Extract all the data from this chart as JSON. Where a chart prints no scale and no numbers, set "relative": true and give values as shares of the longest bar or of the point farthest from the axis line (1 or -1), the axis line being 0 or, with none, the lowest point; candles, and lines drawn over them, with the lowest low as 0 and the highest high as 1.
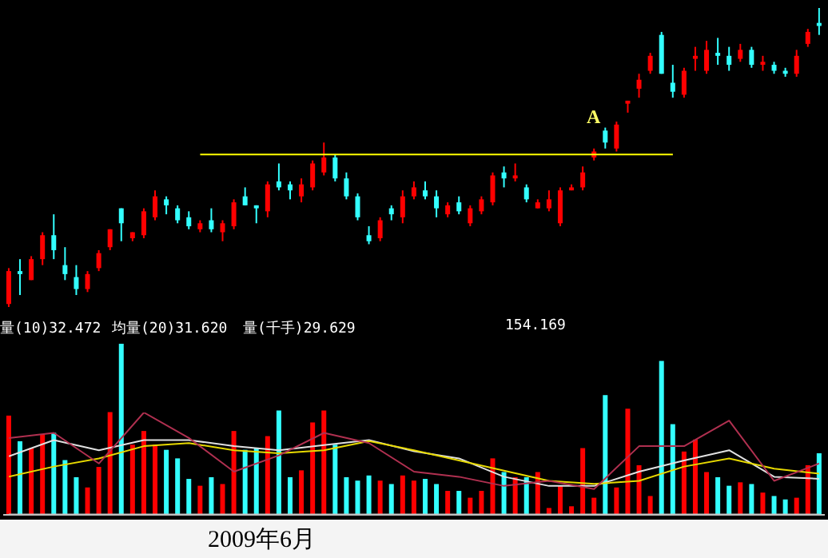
{
  "chart_data": [
    {
      "type": "candlestick",
      "relative": true,
      "legend": false,
      "annotations": [
        "A"
      ],
      "categories": [
        null,
        null,
        null,
        null,
        null,
        null,
        null,
        null,
        null,
        null,
        null,
        null,
        null,
        null,
        null,
        null,
        null,
        null,
        null,
        null,
        null,
        null,
        null,
        null,
        null,
        null,
        null,
        null,
        null,
        null,
        null,
        null,
        null,
        null,
        null,
        null,
        null,
        null,
        null,
        null,
        null,
        null,
        null,
        null,
        null,
        null,
        null,
        null,
        null,
        null,
        null,
        null,
        null,
        null,
        null,
        null,
        null,
        null,
        null,
        null,
        null,
        null,
        null,
        null,
        null,
        null,
        null,
        null,
        null,
        null,
        null,
        null,
        null
      ],
      "series": [
        {
          "ohlc": [
            [
              0.01,
              0.13,
              0,
              0.12
            ],
            [
              0.12,
              0.16,
              0.04,
              0.11
            ],
            [
              0.09,
              0.17,
              0.09,
              0.16
            ],
            [
              0.16,
              0.25,
              0.14,
              0.24
            ],
            [
              0.24,
              0.31,
              0.16,
              0.19
            ],
            [
              0.14,
              0.2,
              0.09,
              0.11
            ],
            [
              0.1,
              0.14,
              0.04,
              0.06
            ],
            [
              0.06,
              0.12,
              0.05,
              0.11
            ],
            [
              0.13,
              0.19,
              0.12,
              0.18
            ],
            [
              0.2,
              0.26,
              0.19,
              0.26
            ],
            [
              0.33,
              0.33,
              0.22,
              0.28
            ],
            [
              0.23,
              0.25,
              0.22,
              0.25
            ],
            [
              0.24,
              0.33,
              0.23,
              0.32
            ],
            [
              0.3,
              0.39,
              0.29,
              0.37
            ],
            [
              0.36,
              0.37,
              0.31,
              0.34
            ],
            [
              0.33,
              0.34,
              0.28,
              0.29
            ],
            [
              0.3,
              0.32,
              0.26,
              0.27
            ],
            [
              0.26,
              0.29,
              0.25,
              0.28
            ],
            [
              0.29,
              0.33,
              0.25,
              0.26
            ],
            [
              0.25,
              0.29,
              0.22,
              0.28
            ],
            [
              0.27,
              0.36,
              0.26,
              0.35
            ],
            [
              0.37,
              0.4,
              0.34,
              0.34
            ],
            [
              0.34,
              0.34,
              0.28,
              0.33
            ],
            [
              0.32,
              0.42,
              0.3,
              0.41
            ],
            [
              0.42,
              0.48,
              0.39,
              0.4
            ],
            [
              0.41,
              0.42,
              0.36,
              0.39
            ],
            [
              0.37,
              0.43,
              0.35,
              0.41
            ],
            [
              0.4,
              0.49,
              0.39,
              0.48
            ],
            [
              0.45,
              0.55,
              0.44,
              0.5
            ],
            [
              0.5,
              0.51,
              0.42,
              0.43
            ],
            [
              0.43,
              0.45,
              0.36,
              0.37
            ],
            [
              0.37,
              0.38,
              0.29,
              0.3
            ],
            [
              0.24,
              0.27,
              0.21,
              0.22
            ],
            [
              0.23,
              0.3,
              0.22,
              0.29
            ],
            [
              0.33,
              0.34,
              0.29,
              0.31
            ],
            [
              0.3,
              0.39,
              0.28,
              0.37
            ],
            [
              0.37,
              0.42,
              0.36,
              0.4
            ],
            [
              0.39,
              0.42,
              0.36,
              0.37
            ],
            [
              0.37,
              0.39,
              0.3,
              0.33
            ],
            [
              0.31,
              0.35,
              0.3,
              0.34
            ],
            [
              0.35,
              0.37,
              0.31,
              0.32
            ],
            [
              0.28,
              0.34,
              0.27,
              0.33
            ],
            [
              0.32,
              0.37,
              0.31,
              0.36
            ],
            [
              0.35,
              0.45,
              0.34,
              0.44
            ],
            [
              0.45,
              0.47,
              0.4,
              0.43
            ],
            [
              0.43,
              0.48,
              0.42,
              0.44
            ],
            [
              0.4,
              0.41,
              0.35,
              0.36
            ],
            [
              0.33,
              0.36,
              0.33,
              0.35
            ],
            [
              0.33,
              0.39,
              0.32,
              0.36
            ],
            [
              0.28,
              0.4,
              0.27,
              0.39
            ],
            [
              0.39,
              0.41,
              0.39,
              0.4
            ],
            [
              0.4,
              0.47,
              0.39,
              0.45
            ],
            [
              0.5,
              0.53,
              0.49,
              0.52
            ],
            [
              0.59,
              0.6,
              0.53,
              0.55
            ],
            [
              0.53,
              0.62,
              0.52,
              0.61
            ],
            [
              0.68,
              0.69,
              0.65,
              0.69
            ],
            [
              0.73,
              0.78,
              0.7,
              0.76
            ],
            [
              0.79,
              0.85,
              0.78,
              0.84
            ],
            [
              0.91,
              0.92,
              0.78,
              0.78
            ],
            [
              0.75,
              0.81,
              0.7,
              0.72
            ],
            [
              0.71,
              0.8,
              0.7,
              0.79
            ],
            [
              0.83,
              0.87,
              0.79,
              0.84
            ],
            [
              0.79,
              0.89,
              0.78,
              0.86
            ],
            [
              0.85,
              0.9,
              0.81,
              0.84
            ],
            [
              0.84,
              0.87,
              0.79,
              0.81
            ],
            [
              0.83,
              0.88,
              0.82,
              0.86
            ],
            [
              0.86,
              0.87,
              0.8,
              0.81
            ],
            [
              0.81,
              0.84,
              0.79,
              0.82
            ],
            [
              0.81,
              0.82,
              0.78,
              0.79
            ],
            [
              0.79,
              0.8,
              0.77,
              0.78
            ],
            [
              0.78,
              0.86,
              0.77,
              0.84
            ],
            [
              0.88,
              0.93,
              0.87,
              0.92
            ],
            [
              0.95,
              1,
              0.91,
              0.94
            ]
          ],
          "colors": [
            "#ff0000",
            "#33ffff",
            "#ff0000",
            "#ff0000",
            "#33ffff",
            "#33ffff",
            "#33ffff",
            "#ff0000",
            "#ff0000",
            "#ff0000",
            "#33ffff",
            "#ff0000",
            "#ff0000",
            "#ff0000",
            "#33ffff",
            "#33ffff",
            "#33ffff",
            "#ff0000",
            "#33ffff",
            "#ff0000",
            "#ff0000",
            "#33ffff",
            "#33ffff",
            "#ff0000",
            "#33ffff",
            "#33ffff",
            "#ff0000",
            "#ff0000",
            "#ff0000",
            "#33ffff",
            "#33ffff",
            "#33ffff",
            "#33ffff",
            "#ff0000",
            "#33ffff",
            "#ff0000",
            "#ff0000",
            "#33ffff",
            "#33ffff",
            "#ff0000",
            "#33ffff",
            "#ff0000",
            "#ff0000",
            "#ff0000",
            "#33ffff",
            "#ff0000",
            "#33ffff",
            "#ff0000",
            "#ff0000",
            "#ff0000",
            "#ff0000",
            "#ff0000",
            "#ff0000",
            "#33ffff",
            "#ff0000",
            "#ff0000",
            "#ff0000",
            "#ff0000",
            "#33ffff",
            "#33ffff",
            "#ff0000",
            "#ff0000",
            "#ff0000",
            "#33ffff",
            "#33ffff",
            "#ff0000",
            "#33ffff",
            "#ff0000",
            "#33ffff",
            "#33ffff",
            "#ff0000",
            "#ff0000",
            "#33ffff"
          ]
        },
        {
          "type": "line",
          "color": "#ffff00",
          "values": [
            null,
            null,
            null,
            null,
            null,
            null,
            null,
            null,
            null,
            null,
            null,
            null,
            null,
            null,
            null,
            null,
            null,
            0.51,
            0.51,
            0.51,
            0.51,
            0.51,
            0.51,
            0.51,
            0.51,
            0.51,
            0.51,
            0.51,
            0.51,
            0.51,
            0.51,
            0.51,
            0.51,
            0.51,
            0.51,
            0.51,
            0.51,
            0.51,
            0.51,
            0.51,
            0.51,
            0.51,
            0.51,
            0.51,
            0.51,
            0.51,
            0.51,
            0.51,
            0.51,
            0.51,
            0.51,
            0.51,
            0.51,
            0.51,
            0.51,
            0.51,
            0.51,
            0.51,
            0.51,
            0.51,
            null,
            null,
            null,
            null,
            null,
            null,
            null,
            null,
            null,
            null,
            null,
            null,
            null
          ]
        }
      ]
    },
    {
      "type": "bar",
      "relative": true,
      "legend": false,
      "xlabel": "2009年6月",
      "annotations": [
        "量(10)32.472",
        "均量(20)31.620",
        "量(千手)29.629",
        "154.169"
      ],
      "categories": [
        null,
        null,
        null,
        null,
        null,
        null,
        null,
        null,
        null,
        null,
        null,
        null,
        null,
        null,
        null,
        null,
        null,
        null,
        null,
        null,
        null,
        null,
        null,
        null,
        null,
        null,
        null,
        null,
        null,
        null,
        null,
        null,
        null,
        null,
        null,
        null,
        null,
        null,
        null,
        null,
        null,
        null,
        null,
        null,
        null,
        null,
        null,
        null,
        null,
        null,
        null,
        null,
        null,
        null,
        null,
        null,
        null,
        null,
        null,
        null,
        null,
        null,
        null,
        null,
        null,
        null,
        null,
        null,
        null,
        null,
        null,
        null,
        null
      ],
      "series": [
        {
          "values": [
            0.58,
            0.43,
            0.39,
            0.47,
            0.48,
            0.32,
            0.22,
            0.16,
            0.28,
            0.6,
            1,
            0.41,
            0.49,
            0.41,
            0.38,
            0.33,
            0.21,
            0.17,
            0.22,
            0.18,
            0.49,
            0.38,
            0.39,
            0.46,
            0.61,
            0.22,
            0.26,
            0.54,
            0.61,
            0.41,
            0.22,
            0.2,
            0.23,
            0.2,
            0.18,
            0.23,
            0.2,
            0.21,
            0.18,
            0.14,
            0.14,
            0.1,
            0.14,
            0.33,
            0.25,
            0.22,
            0.22,
            0.25,
            0.04,
            0.17,
            0.05,
            0.39,
            0.1,
            0.7,
            0.16,
            0.62,
            0.29,
            0.11,
            0.9,
            0.53,
            0.37,
            0.44,
            0.25,
            0.22,
            0.17,
            0.19,
            0.18,
            0.13,
            0.11,
            0.09,
            0.1,
            0.29,
            0.36
          ],
          "colors": [
            "#ff0000",
            "#33ffff",
            "#ff0000",
            "#ff0000",
            "#33ffff",
            "#33ffff",
            "#33ffff",
            "#ff0000",
            "#ff0000",
            "#ff0000",
            "#33ffff",
            "#ff0000",
            "#ff0000",
            "#ff0000",
            "#33ffff",
            "#33ffff",
            "#33ffff",
            "#ff0000",
            "#33ffff",
            "#ff0000",
            "#ff0000",
            "#33ffff",
            "#33ffff",
            "#ff0000",
            "#33ffff",
            "#33ffff",
            "#ff0000",
            "#ff0000",
            "#ff0000",
            "#33ffff",
            "#33ffff",
            "#33ffff",
            "#33ffff",
            "#ff0000",
            "#33ffff",
            "#ff0000",
            "#ff0000",
            "#33ffff",
            "#33ffff",
            "#ff0000",
            "#33ffff",
            "#ff0000",
            "#ff0000",
            "#ff0000",
            "#33ffff",
            "#ff0000",
            "#33ffff",
            "#ff0000",
            "#ff0000",
            "#ff0000",
            "#ff0000",
            "#ff0000",
            "#ff0000",
            "#33ffff",
            "#ff0000",
            "#ff0000",
            "#ff0000",
            "#ff0000",
            "#33ffff",
            "#33ffff",
            "#ff0000",
            "#ff0000",
            "#ff0000",
            "#33ffff",
            "#33ffff",
            "#ff0000",
            "#33ffff",
            "#ff0000",
            "#33ffff",
            "#33ffff",
            "#ff0000",
            "#ff0000",
            "#33ffff"
          ]
        }
      ]
    },
    {
      "type": "line",
      "relative": true,
      "legend": false,
      "categories": [
        null,
        null,
        null,
        null,
        null,
        null,
        null,
        null,
        null,
        null,
        null,
        null,
        null,
        null,
        null,
        null,
        null,
        null,
        null
      ],
      "series": [
        {
          "color": "#e0e0e0",
          "values": [
            0.57,
            0.73,
            0.63,
            0.73,
            0.73,
            0.67,
            0.63,
            0.68,
            0.73,
            0.62,
            0.55,
            0.37,
            0.28,
            0.28,
            0.42,
            0.53,
            0.63,
            0.37,
            0.35
          ]
        },
        {
          "color": "#e6d800",
          "values": [
            0.37,
            0.47,
            0.55,
            0.67,
            0.7,
            0.63,
            0.6,
            0.63,
            0.72,
            0.63,
            0.53,
            0.43,
            0.33,
            0.3,
            0.33,
            0.47,
            0.55,
            0.45,
            0.4
          ]
        },
        {
          "color": "#b03050",
          "values": [
            0.75,
            0.8,
            0.5,
            1,
            0.75,
            0.42,
            0.58,
            0.8,
            0.7,
            0.42,
            0.37,
            0.28,
            0.33,
            0.25,
            0.67,
            0.67,
            0.92,
            0.33,
            0.5
          ]
        }
      ]
    }
  ]
}
